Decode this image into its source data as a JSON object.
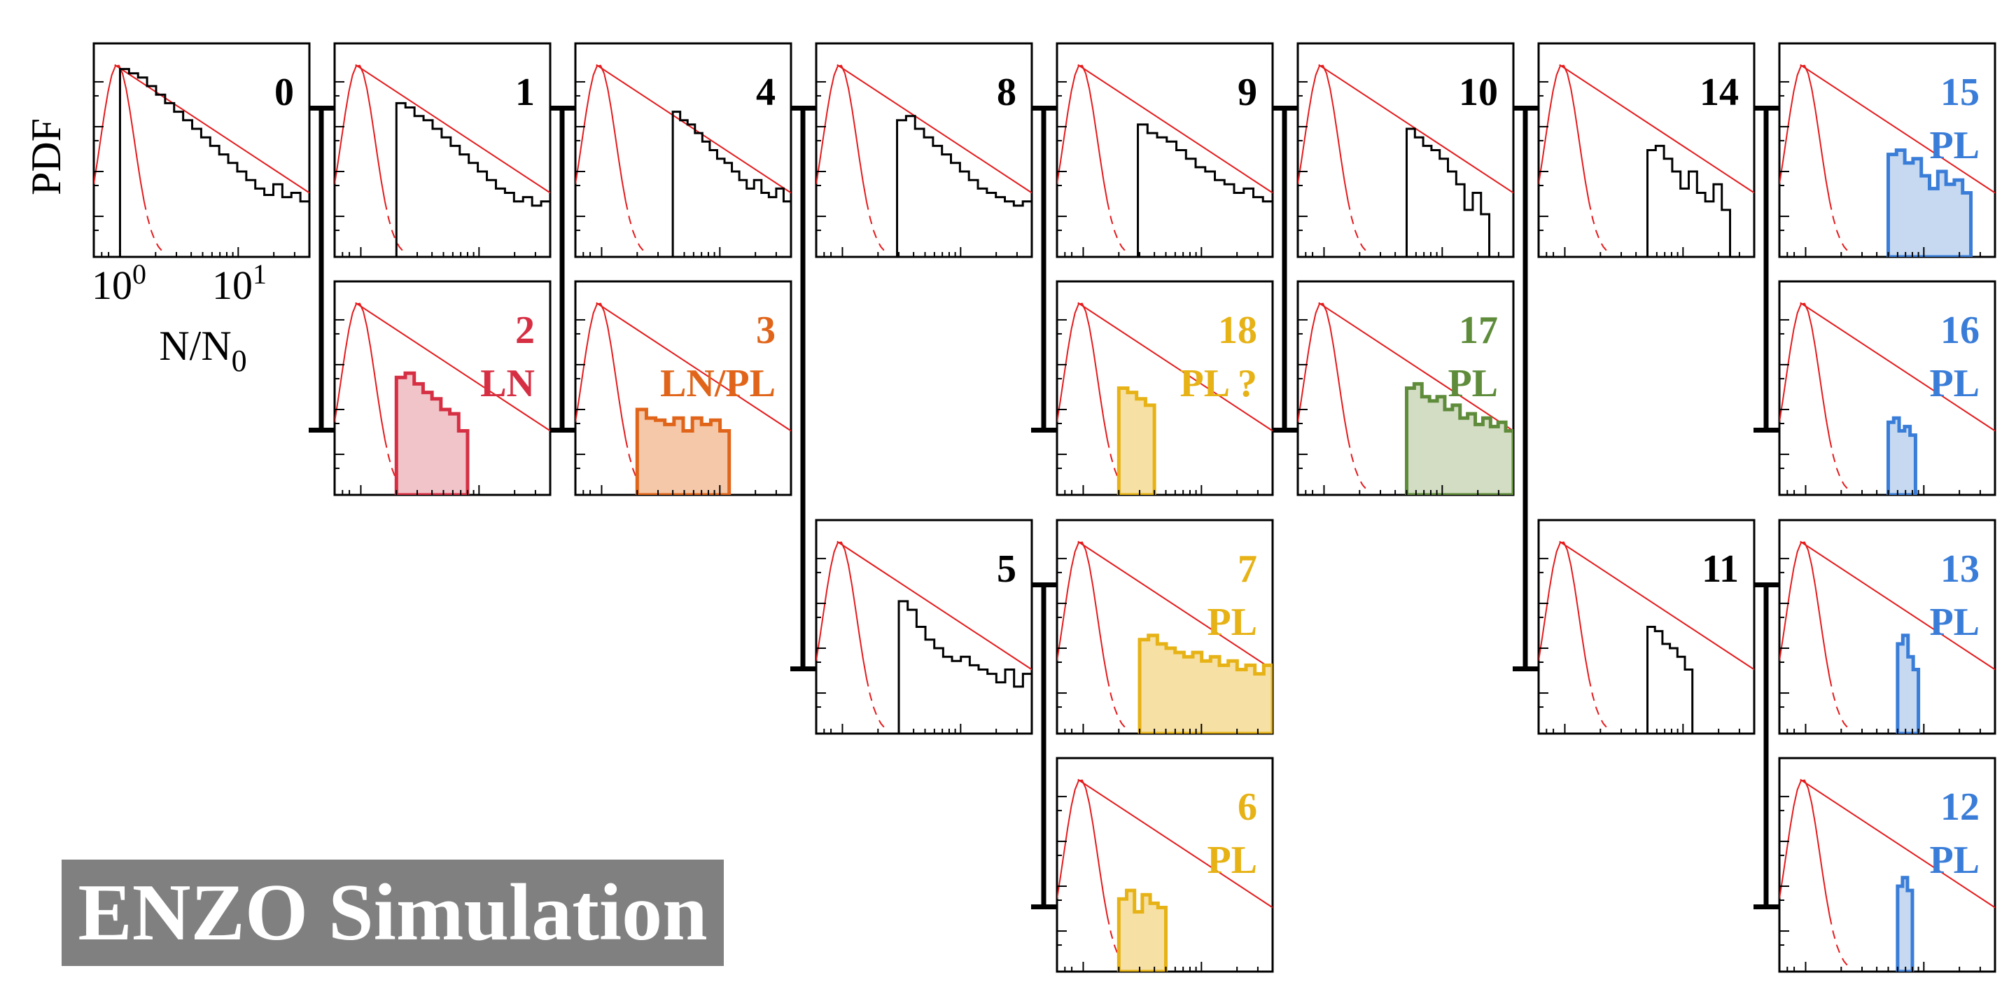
{
  "banner": "ENZO Simulation",
  "ylabel": "PDF",
  "xlabel": "N/N",
  "xlabel_sub": "0",
  "chart_data": {
    "type": "step-histogram-grid",
    "xlabel": "N/N0",
    "ylabel": "PDF",
    "x_scale": "log",
    "xticks": [
      "10^0",
      "10^1"
    ],
    "xlim": [
      0.6,
      40
    ],
    "panels": [
      {
        "id": "0",
        "class": "",
        "color": "#000000",
        "fill": null,
        "x_min": 1.0,
        "x_max": 40,
        "hist": [
          0.88,
          0.86,
          0.84,
          0.8,
          0.76,
          0.72,
          0.68,
          0.64,
          0.6,
          0.56,
          0.52,
          0.48,
          0.44,
          0.4,
          0.36,
          0.32,
          0.29,
          0.34,
          0.28,
          0.3,
          0.26
        ]
      },
      {
        "id": "1",
        "class": "",
        "color": "#000000",
        "fill": null,
        "x_min": 2.0,
        "x_max": 40,
        "hist": [
          0.72,
          0.7,
          0.66,
          0.64,
          0.6,
          0.56,
          0.52,
          0.48,
          0.44,
          0.4,
          0.36,
          0.32,
          0.3,
          0.26,
          0.28,
          0.24,
          0.26
        ]
      },
      {
        "id": "4",
        "class": "",
        "color": "#000000",
        "fill": null,
        "x_min": 4.0,
        "x_max": 40,
        "hist": [
          0.68,
          0.64,
          0.62,
          0.58,
          0.54,
          0.5,
          0.46,
          0.44,
          0.4,
          0.36,
          0.32,
          0.36,
          0.3,
          0.28,
          0.32,
          0.26
        ]
      },
      {
        "id": "8",
        "class": "",
        "color": "#000000",
        "fill": null,
        "x_min": 2.9,
        "x_max": 40,
        "hist": [
          0.64,
          0.66,
          0.6,
          0.56,
          0.52,
          0.48,
          0.44,
          0.4,
          0.36,
          0.32,
          0.3,
          0.28,
          0.26,
          0.24,
          0.26
        ]
      },
      {
        "id": "9",
        "class": "",
        "color": "#000000",
        "fill": null,
        "x_min": 2.9,
        "x_max": 40,
        "hist": [
          0.62,
          0.58,
          0.56,
          0.54,
          0.5,
          0.46,
          0.42,
          0.4,
          0.36,
          0.34,
          0.3,
          0.32,
          0.28,
          0.26
        ]
      },
      {
        "id": "10",
        "class": "",
        "color": "#000000",
        "fill": null,
        "x_min": 5.0,
        "x_max": 25,
        "hist": [
          0.6,
          0.56,
          0.52,
          0.5,
          0.46,
          0.4,
          0.34,
          0.22,
          0.3,
          0.2
        ]
      },
      {
        "id": "14",
        "class": "",
        "color": "#000000",
        "fill": null,
        "x_min": 5.0,
        "x_max": 25,
        "hist": [
          0.5,
          0.52,
          0.46,
          0.4,
          0.32,
          0.4,
          0.3,
          0.26,
          0.34,
          0.22
        ]
      },
      {
        "id": "15",
        "class": "PL",
        "color": "#3a7dd8",
        "fill": "#c6d9f1",
        "x_min": 5.0,
        "x_max": 25,
        "hist": [
          0.48,
          0.5,
          0.44,
          0.46,
          0.38,
          0.32,
          0.4,
          0.34,
          0.36,
          0.3
        ]
      },
      {
        "id": "2",
        "class": "LN",
        "color": "#d62f43",
        "fill": "#f0c4c8",
        "x_min": 2.0,
        "x_max": 8.0,
        "hist": [
          0.55,
          0.57,
          0.52,
          0.48,
          0.45,
          0.4,
          0.38,
          0.3
        ]
      },
      {
        "id": "3",
        "class": "LN/PL",
        "color": "#e0651a",
        "fill": "#f4c8a9",
        "x_min": 2.0,
        "x_max": 12,
        "hist": [
          0.4,
          0.36,
          0.35,
          0.33,
          0.36,
          0.3,
          0.36,
          0.33,
          0.35,
          0.3
        ]
      },
      {
        "id": "18",
        "class": "PL ?",
        "color": "#e6b215",
        "fill": "#f6e0a4",
        "x_min": 2.0,
        "x_max": 4.0,
        "hist": [
          0.5,
          0.48,
          0.45,
          0.42
        ]
      },
      {
        "id": "17",
        "class": "PL",
        "color": "#5e8c3a",
        "fill": "#d3ddc4",
        "x_min": 5.0,
        "x_max": 40,
        "hist": [
          0.5,
          0.52,
          0.46,
          0.44,
          0.46,
          0.4,
          0.42,
          0.36,
          0.38,
          0.33,
          0.36,
          0.32,
          0.34,
          0.3
        ]
      },
      {
        "id": "5",
        "class": "",
        "color": "#000000",
        "fill": null,
        "x_min": 3.0,
        "x_max": 40,
        "hist": [
          0.62,
          0.58,
          0.5,
          0.44,
          0.4,
          0.36,
          0.34,
          0.36,
          0.32,
          0.3,
          0.28,
          0.24,
          0.3,
          0.22,
          0.28
        ]
      },
      {
        "id": "7",
        "class": "PL",
        "color": "#e6b215",
        "fill": "#f6e0a4",
        "x_min": 3.0,
        "x_max": 40,
        "hist": [
          0.44,
          0.46,
          0.42,
          0.4,
          0.38,
          0.36,
          0.38,
          0.34,
          0.36,
          0.32,
          0.34,
          0.3,
          0.32,
          0.28,
          0.32
        ]
      },
      {
        "id": "11",
        "class": "",
        "color": "#000000",
        "fill": null,
        "x_min": 5.0,
        "x_max": 12,
        "hist": [
          0.5,
          0.48,
          0.42,
          0.4,
          0.36,
          0.3
        ]
      },
      {
        "id": "16",
        "class": "PL",
        "color": "#3a7dd8",
        "fill": "#c6d9f1",
        "x_min": 5.0,
        "x_max": 8.5,
        "hist": [
          0.34,
          0.36,
          0.3,
          0.32,
          0.28
        ]
      },
      {
        "id": "13",
        "class": "PL",
        "color": "#3a7dd8",
        "fill": "#c6d9f1",
        "x_min": 6.0,
        "x_max": 9.0,
        "hist": [
          0.42,
          0.46,
          0.36,
          0.3
        ]
      },
      {
        "id": "6",
        "class": "PL",
        "color": "#e6b215",
        "fill": "#f6e0a4",
        "x_min": 2.0,
        "x_max": 5.0,
        "hist": [
          0.34,
          0.38,
          0.28,
          0.36,
          0.32,
          0.3
        ]
      },
      {
        "id": "12",
        "class": "PL",
        "color": "#3a7dd8",
        "fill": "#c6d9f1",
        "x_min": 6.0,
        "x_max": 8.0,
        "hist": [
          0.4,
          0.44,
          0.38
        ]
      }
    ]
  }
}
